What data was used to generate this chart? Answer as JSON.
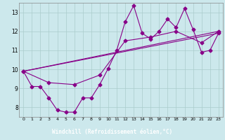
{
  "xlabel": "Windchill (Refroidissement éolien,°C)",
  "background_color": "#cce8ec",
  "plot_bg_color": "#cce8ec",
  "line_color": "#880088",
  "label_bg_color": "#550055",
  "label_text_color": "#ffffff",
  "xlim": [
    -0.5,
    23.5
  ],
  "ylim": [
    7.5,
    13.5
  ],
  "xticks": [
    0,
    1,
    2,
    3,
    4,
    5,
    6,
    7,
    8,
    9,
    10,
    11,
    12,
    13,
    14,
    15,
    16,
    17,
    18,
    19,
    20,
    21,
    22,
    23
  ],
  "yticks": [
    8,
    9,
    10,
    11,
    12,
    13
  ],
  "grid_color": "#aacccc",
  "main_x": [
    0,
    1,
    2,
    3,
    4,
    5,
    6,
    7,
    8,
    9,
    10,
    11,
    12,
    13,
    14,
    15,
    16,
    17,
    18,
    19,
    20,
    21,
    22,
    23
  ],
  "main_y": [
    9.9,
    9.1,
    9.1,
    8.5,
    7.85,
    7.75,
    7.75,
    8.5,
    8.5,
    9.2,
    10.05,
    11.0,
    12.5,
    13.35,
    11.9,
    11.6,
    12.0,
    12.65,
    12.2,
    13.2,
    12.1,
    10.9,
    11.0,
    11.9
  ],
  "trend1_x": [
    0,
    3,
    6,
    9,
    12,
    15,
    18,
    21,
    23
  ],
  "trend1_y": [
    9.9,
    9.3,
    9.2,
    9.7,
    11.5,
    11.7,
    12.0,
    11.4,
    12.0
  ],
  "trend2_x": [
    0,
    23
  ],
  "trend2_y": [
    9.9,
    11.9
  ],
  "trend3_x": [
    0,
    23
  ],
  "trend3_y": [
    9.9,
    12.0
  ]
}
